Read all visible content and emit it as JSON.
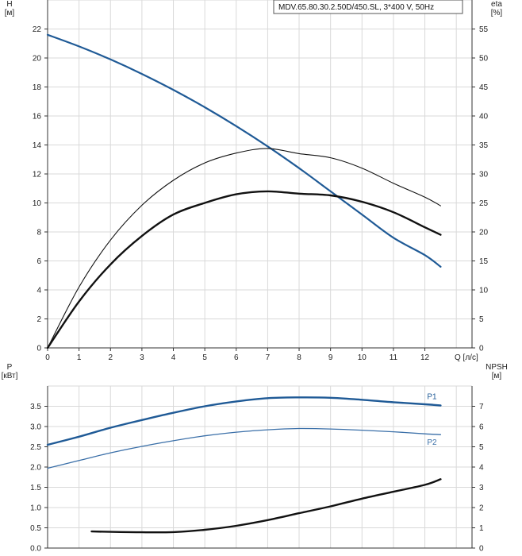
{
  "chart_data": [
    {
      "type": "line",
      "title": "MDV.65.80.30.2.50D/450.SL, 3*400 V, 50Hz",
      "xlabel": "Q [л/с]",
      "ylabel": "H\n[м]",
      "y2label": "eta\n[%]",
      "xlim": [
        0,
        13.5
      ],
      "x_ticks": [
        0,
        1,
        2,
        3,
        4,
        5,
        6,
        7,
        8,
        9,
        10,
        11,
        12
      ],
      "ylim": [
        0,
        24
      ],
      "y_ticks": [
        0,
        2,
        4,
        6,
        8,
        10,
        12,
        14,
        16,
        18,
        20,
        22
      ],
      "y2lim": [
        0,
        60
      ],
      "y2_ticks": [
        0,
        5,
        10,
        15,
        20,
        25,
        30,
        35,
        40,
        45,
        50,
        55
      ],
      "grid": true,
      "series": [
        {
          "axis": "left",
          "color": "#1f5a96",
          "width": 2.2,
          "x": [
            0,
            1,
            2,
            3,
            4,
            5,
            6,
            7,
            8,
            9,
            10,
            11,
            12,
            12.5
          ],
          "y": [
            21.6,
            20.8,
            19.9,
            18.9,
            17.8,
            16.6,
            15.3,
            13.9,
            12.4,
            10.8,
            9.2,
            7.6,
            6.4,
            5.6
          ]
        },
        {
          "axis": "right",
          "color": "#111111",
          "width": 1.1,
          "x": [
            0,
            1,
            2,
            3,
            4,
            5,
            6,
            7,
            8,
            9,
            10,
            11,
            12,
            12.5
          ],
          "y": [
            0,
            10.5,
            18.6,
            24.6,
            28.9,
            31.9,
            33.6,
            34.4,
            33.5,
            32.8,
            31.0,
            28.4,
            26.0,
            24.5
          ]
        },
        {
          "axis": "right",
          "color": "#111111",
          "width": 2.4,
          "x": [
            0,
            1,
            2,
            3,
            4,
            5,
            6,
            7,
            8,
            9,
            10,
            11,
            12,
            12.5
          ],
          "y": [
            0,
            8.0,
            14.4,
            19.3,
            23.0,
            25.0,
            26.5,
            27.0,
            26.6,
            26.3,
            25.2,
            23.4,
            20.8,
            19.5
          ]
        }
      ]
    },
    {
      "type": "line",
      "xlabel": "",
      "ylabel": "P\n[кВт]",
      "y2label": "NPSH\n[м]",
      "xlim": [
        0,
        13.5
      ],
      "ylim": [
        0,
        4.0
      ],
      "y_ticks": [
        0.0,
        0.5,
        1.0,
        1.5,
        2.0,
        2.5,
        3.0,
        3.5
      ],
      "y_tick_labels": [
        "0.0",
        "0.5",
        "1.0",
        "1.5",
        "2.0",
        "2.5",
        "3.0",
        "3.5"
      ],
      "y2lim": [
        0,
        8
      ],
      "y2_ticks": [
        0,
        1,
        2,
        3,
        4,
        5,
        6,
        7
      ],
      "grid": true,
      "series": [
        {
          "name": "P1",
          "axis": "left",
          "color": "#1f5a96",
          "width": 2.4,
          "x": [
            0,
            1,
            2,
            3,
            4,
            5,
            6,
            7,
            8,
            9,
            10,
            11,
            12,
            12.5
          ],
          "y": [
            2.55,
            2.75,
            2.97,
            3.16,
            3.34,
            3.5,
            3.62,
            3.7,
            3.72,
            3.71,
            3.66,
            3.6,
            3.55,
            3.52
          ]
        },
        {
          "name": "P2",
          "axis": "left",
          "color": "#3a6fa8",
          "width": 1.3,
          "x": [
            0,
            1,
            2,
            3,
            4,
            5,
            6,
            7,
            8,
            9,
            10,
            11,
            12,
            12.5
          ],
          "y": [
            1.97,
            2.16,
            2.35,
            2.51,
            2.65,
            2.77,
            2.86,
            2.92,
            2.95,
            2.94,
            2.91,
            2.87,
            2.82,
            2.8
          ]
        },
        {
          "axis": "right",
          "color": "#111111",
          "width": 2.4,
          "x": [
            1.4,
            2,
            3,
            4,
            5,
            6,
            7,
            8,
            9,
            10,
            11,
            12,
            12.5
          ],
          "y": [
            0.82,
            0.8,
            0.78,
            0.79,
            0.9,
            1.1,
            1.38,
            1.72,
            2.06,
            2.44,
            2.78,
            3.12,
            3.4
          ]
        }
      ]
    }
  ]
}
